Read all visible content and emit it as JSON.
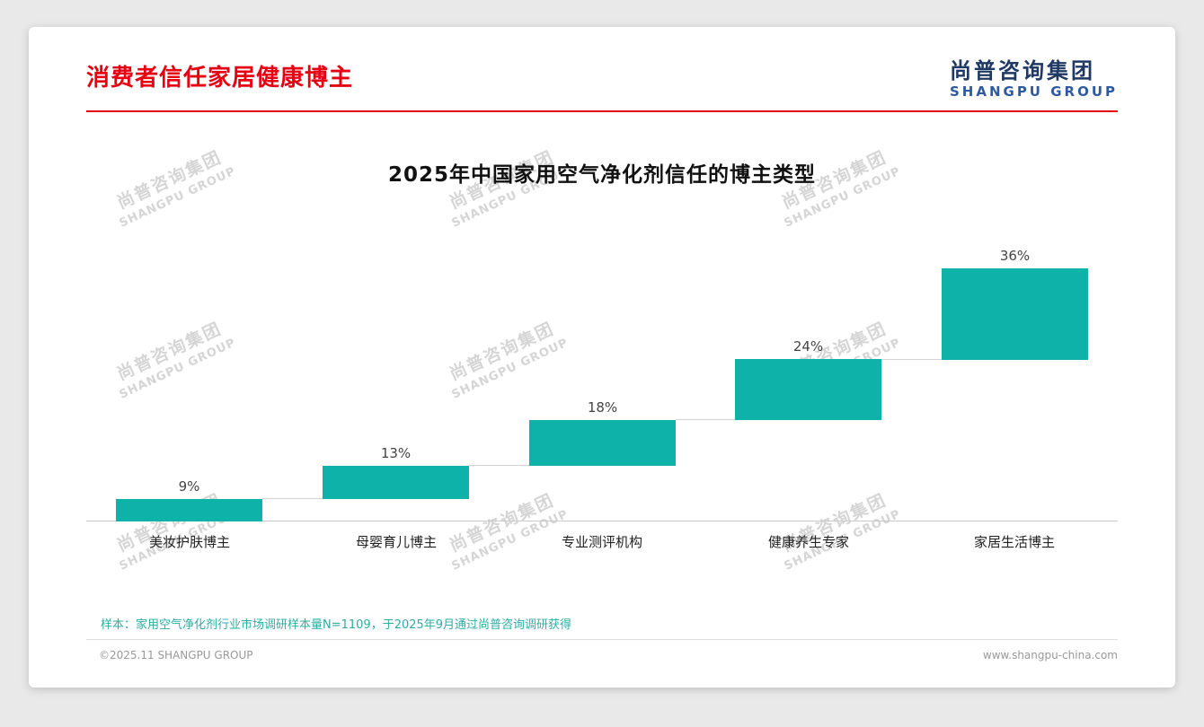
{
  "header": {
    "title": "消费者信任家居健康博主",
    "logo": {
      "cn": "尚普咨询集团",
      "en": "SHANGPU GROUP"
    }
  },
  "watermark": {
    "line1": "尚普咨询集团",
    "line2": "SHANGPU GROUP"
  },
  "chart_data": {
    "type": "bar",
    "subtype": "waterfall-step",
    "title": "2025年中国家用空气净化剂信任的博主类型",
    "categories": [
      "美妆护肤博主",
      "母婴育儿博主",
      "专业测评机构",
      "健康养生专家",
      "家居生活博主"
    ],
    "values": [
      9,
      13,
      18,
      24,
      36
    ],
    "value_labels": [
      "9%",
      "13%",
      "18%",
      "24%",
      "36%"
    ],
    "unit": "%",
    "bar_color": "#0fb2a8",
    "ylim": [
      0,
      100
    ],
    "grid": false,
    "legend": false,
    "note": "Each bar starts at the cumulative top of the previous bar (step/waterfall layout), values sum to 100%"
  },
  "footer": {
    "note": "样本：家用空气净化剂行业市场调研样本量N=1109，于2025年9月通过尚普咨询调研获得",
    "copyright": "©2025.11 SHANGPU GROUP",
    "website": "www.shangpu-china.com"
  },
  "colors": {
    "accent_red": "#e60012",
    "teal": "#0fb2a8",
    "logo_navy": "#1f3864",
    "logo_blue": "#2e5b9f",
    "watermark_gray": "#d5d5d5"
  }
}
